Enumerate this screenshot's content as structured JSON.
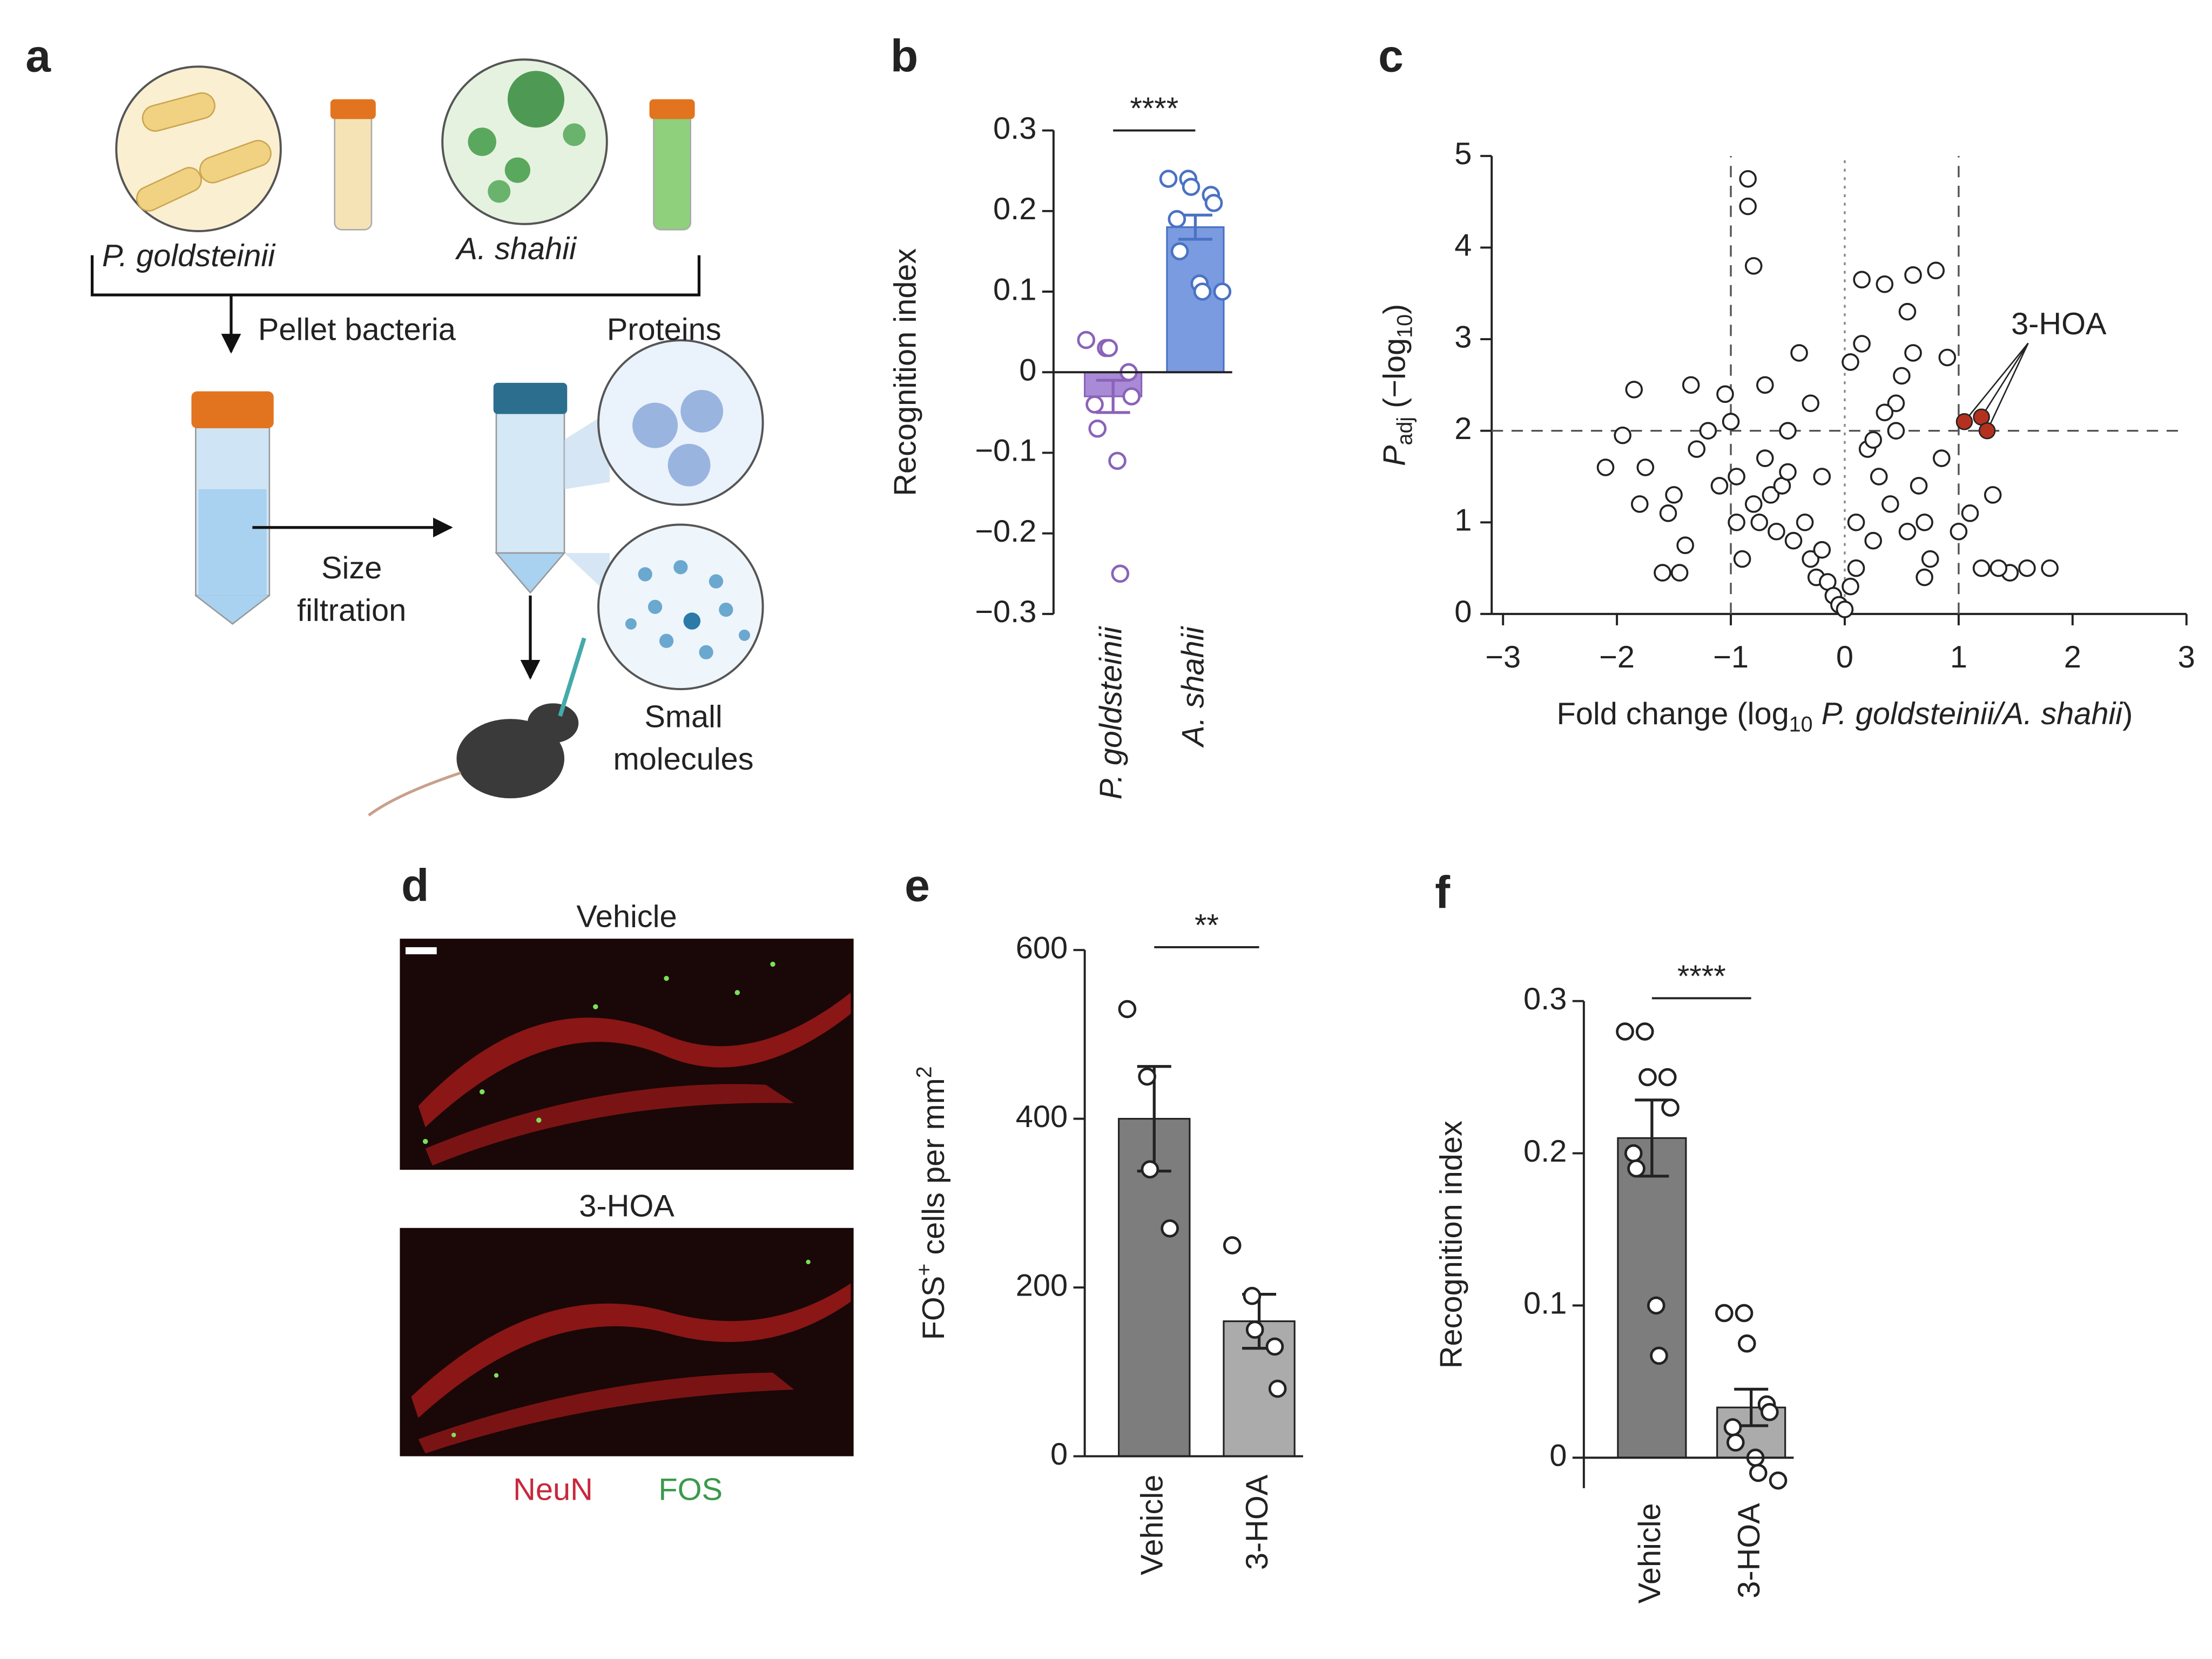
{
  "diagram": {
    "panel": "a",
    "labels": [
      "P. goldsteinii",
      "A. shahii",
      "Pellet bacteria",
      "Proteins",
      "Size",
      "filtration",
      "Small",
      "molecules"
    ]
  },
  "micrographs": {
    "panel": "d",
    "titles": [
      "Vehicle",
      "3-HOA"
    ],
    "channels": [
      "NeuN",
      "FOS"
    ]
  },
  "chart_data": [
    {
      "type": "bar",
      "panel": "b",
      "ylabel": "Recognition index",
      "categories": [
        "P. goldsteinii",
        "A. shahii"
      ],
      "values": [
        -0.03,
        0.18
      ],
      "errors": [
        0.02,
        0.015
      ],
      "colors": [
        "#a88ad6",
        "#7b9be0"
      ],
      "point_colors": [
        "#8a63b8",
        "#4a72c4"
      ],
      "points": [
        [
          0.04,
          0.03,
          0.03,
          0.0,
          -0.03,
          -0.04,
          -0.07,
          -0.11,
          -0.25
        ],
        [
          0.24,
          0.24,
          0.23,
          0.22,
          0.21,
          0.19,
          0.15,
          0.11,
          0.1,
          0.1
        ]
      ],
      "ylim": [
        -0.3,
        0.3
      ],
      "yticks": [
        0.3,
        0.2,
        0.1,
        0,
        {
          "value": -0.1,
          "label": "−0.1"
        },
        {
          "value": -0.2,
          "label": "−0.2"
        },
        {
          "value": -0.3,
          "label": "−0.3"
        }
      ],
      "significance": "****"
    },
    {
      "type": "scatter",
      "panel": "c",
      "xlabel_parts": [
        "Fold change (log",
        "10",
        " P. goldsteinii/A. shahii",
        ")"
      ],
      "ylabel_parts": [
        "P",
        "adj",
        " (−log",
        "10",
        ")"
      ],
      "xlim": [
        -3,
        3
      ],
      "xticks": [
        {
          "value": -3,
          "label": "−3"
        },
        {
          "value": -2,
          "label": "−2"
        },
        {
          "value": -1,
          "label": "−1"
        },
        0,
        1,
        2,
        3
      ],
      "ylim": [
        0,
        5
      ],
      "yticks": [
        0,
        1,
        2,
        3,
        4,
        5
      ],
      "thresholds": {
        "x": [
          -1,
          1
        ],
        "y": 2,
        "center": 0
      },
      "points": {
        "color": "#222",
        "x": [
          -2.1,
          -1.95,
          -1.85,
          -1.8,
          -1.75,
          -1.6,
          -1.55,
          -1.45,
          -1.4,
          -1.35,
          -1.3,
          -1.2,
          -1.1,
          -1.05,
          -1.0,
          -0.95,
          -0.9,
          -0.85,
          -0.8,
          -0.75,
          -0.7,
          -0.65,
          -0.6,
          -0.55,
          -0.5,
          -0.45,
          -0.4,
          -0.35,
          -0.3,
          -0.25,
          -0.2,
          -0.15,
          -0.1,
          -0.05,
          0,
          0.05,
          0.1,
          0.15,
          0.2,
          0.25,
          0.3,
          0.35,
          0.4,
          0.45,
          0.5,
          0.55,
          0.6,
          0.65,
          0.7,
          0.75,
          0.8,
          0.9,
          1.0,
          1.1,
          1.2,
          1.3,
          1.45,
          1.6,
          1.8,
          -0.85,
          -0.8,
          -0.7,
          -0.95,
          -0.2,
          0.05,
          0.15,
          0.35,
          0.55,
          0.7,
          0.85,
          0.45,
          0.25,
          -0.5,
          -0.3,
          0.1,
          0.6,
          -1.5,
          1.35
        ],
        "y": [
          1.6,
          1.95,
          2.45,
          1.2,
          1.6,
          0.45,
          1.1,
          0.45,
          0.75,
          2.5,
          1.8,
          2.0,
          1.4,
          2.4,
          2.1,
          1.5,
          0.6,
          4.75,
          1.2,
          1.0,
          1.7,
          1.3,
          0.9,
          1.4,
          2.0,
          0.8,
          2.85,
          1.0,
          0.6,
          0.4,
          0.7,
          0.35,
          0.2,
          0.1,
          0.05,
          0.3,
          0.5,
          2.95,
          1.8,
          0.8,
          1.5,
          3.6,
          1.2,
          2.3,
          2.6,
          0.9,
          3.7,
          1.4,
          1.0,
          0.6,
          3.75,
          2.8,
          0.9,
          1.1,
          0.5,
          1.3,
          0.45,
          0.5,
          0.5,
          4.45,
          3.8,
          2.5,
          1.0,
          1.5,
          2.75,
          3.65,
          2.2,
          3.3,
          0.4,
          1.7,
          2.0,
          1.9,
          1.55,
          2.3,
          1.0,
          2.85,
          1.3,
          0.5
        ]
      },
      "highlighted": {
        "label": "3-HOA",
        "color": "#b5311f",
        "x": [
          1.05,
          1.2,
          1.25
        ],
        "y": [
          2.1,
          2.15,
          2.0
        ]
      }
    },
    {
      "type": "bar",
      "panel": "e",
      "ylabel_parts": [
        "FOS",
        "+",
        " cells per mm",
        "2"
      ],
      "categories": [
        "Vehicle",
        "3-HOA"
      ],
      "values": [
        400,
        160
      ],
      "errors": [
        62,
        32
      ],
      "colors": [
        "#7d7d7d",
        "#ababab"
      ],
      "point_colors": [
        "#222",
        "#222"
      ],
      "points": [
        [
          530,
          450,
          340,
          270
        ],
        [
          250,
          190,
          150,
          130,
          80
        ]
      ],
      "ylim": [
        0,
        600
      ],
      "yticks": [
        0,
        200,
        400,
        600
      ],
      "significance": "**"
    },
    {
      "type": "bar",
      "panel": "f",
      "ylabel": "Recognition index",
      "categories": [
        "Vehicle",
        "3-HOA"
      ],
      "values": [
        0.21,
        0.033
      ],
      "errors": [
        0.025,
        0.012
      ],
      "colors": [
        "#7d7d7d",
        "#ababab"
      ],
      "point_colors": [
        "#222",
        "#222"
      ],
      "points": [
        [
          0.28,
          0.28,
          0.25,
          0.25,
          0.23,
          0.2,
          0.19,
          0.1,
          0.067
        ],
        [
          0.095,
          0.095,
          0.075,
          0.035,
          0.03,
          0.02,
          0.01,
          0.0,
          -0.01,
          -0.015
        ]
      ],
      "ylim": [
        -0.02,
        0.3
      ],
      "yticks": [
        0,
        0.1,
        0.2,
        0.3
      ],
      "significance": "****"
    }
  ]
}
